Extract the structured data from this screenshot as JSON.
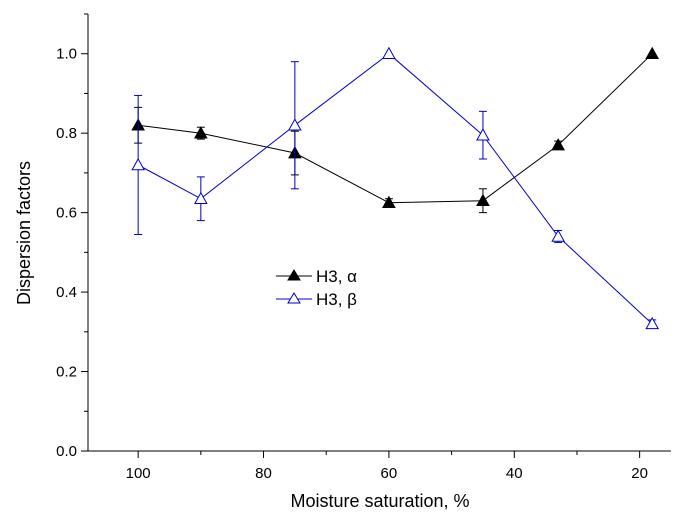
{
  "chart_data": {
    "type": "line",
    "title": "",
    "xlabel": "Moisture saturation, %",
    "ylabel": "Dispersion factors",
    "x_reversed": true,
    "xlim": [
      108,
      15
    ],
    "ylim": [
      0.0,
      1.1
    ],
    "xticks": [
      100,
      80,
      60,
      40,
      20
    ],
    "yticks": [
      0.0,
      0.2,
      0.4,
      0.6,
      0.8,
      1.0
    ],
    "xtick_labels": [
      "100",
      "80",
      "60",
      "40",
      "20"
    ],
    "ytick_labels": [
      "0.0",
      "0.2",
      "0.4",
      "0.6",
      "0.8",
      "1.0"
    ],
    "grid": false,
    "legend_position": "center",
    "series": [
      {
        "name": "H3, α",
        "color": "#000000",
        "marker": "filled-triangle",
        "x": [
          100,
          90,
          75,
          60,
          45,
          33,
          18
        ],
        "y": [
          0.82,
          0.8,
          0.75,
          0.625,
          0.63,
          0.77,
          1.0
        ],
        "err": [
          0.045,
          0.015,
          0.055,
          0.01,
          0.03,
          0.01,
          0.0
        ]
      },
      {
        "name": "H3, β",
        "color": "#0000cc",
        "marker": "open-triangle",
        "x": [
          100,
          90,
          75,
          60,
          45,
          33,
          18
        ],
        "y": [
          0.72,
          0.635,
          0.82,
          1.0,
          0.795,
          0.54,
          0.32
        ],
        "err": [
          0.175,
          0.055,
          0.16,
          0.0,
          0.06,
          0.015,
          0.01
        ]
      }
    ]
  }
}
